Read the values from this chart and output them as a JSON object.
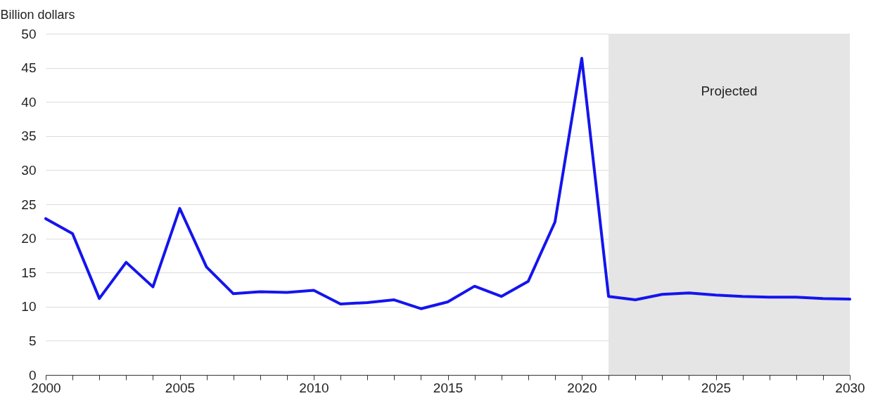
{
  "chart_data": {
    "type": "line",
    "ylabel": "Billion dollars",
    "x": [
      2000,
      2001,
      2002,
      2003,
      2004,
      2005,
      2006,
      2007,
      2008,
      2009,
      2010,
      2011,
      2012,
      2013,
      2014,
      2015,
      2016,
      2017,
      2018,
      2019,
      2020,
      2021,
      2022,
      2023,
      2024,
      2025,
      2026,
      2027,
      2028,
      2029,
      2030
    ],
    "series": [
      {
        "color": "#1414ee",
        "values": [
          22.9,
          20.7,
          11.2,
          16.5,
          12.9,
          24.4,
          15.8,
          11.9,
          12.2,
          12.1,
          12.4,
          10.4,
          10.6,
          11.0,
          9.7,
          10.7,
          13.0,
          11.5,
          13.7,
          22.4,
          46.4,
          11.5,
          11.0,
          11.8,
          12.0,
          11.7,
          11.5,
          11.4,
          11.4,
          11.2,
          11.1
        ]
      }
    ],
    "xlim": [
      2000,
      2030
    ],
    "xticks": [
      2000,
      {
        "value": 2001,
        "label": null
      },
      {
        "value": 2002,
        "label": null
      },
      {
        "value": 2003,
        "label": null
      },
      {
        "value": 2004,
        "label": null
      },
      2005,
      {
        "value": 2006,
        "label": null
      },
      {
        "value": 2007,
        "label": null
      },
      {
        "value": 2008,
        "label": null
      },
      {
        "value": 2009,
        "label": null
      },
      2010,
      {
        "value": 2011,
        "label": null
      },
      {
        "value": 2012,
        "label": null
      },
      {
        "value": 2013,
        "label": null
      },
      {
        "value": 2014,
        "label": null
      },
      2015,
      {
        "value": 2016,
        "label": null
      },
      {
        "value": 2017,
        "label": null
      },
      {
        "value": 2018,
        "label": null
      },
      {
        "value": 2019,
        "label": null
      },
      2020,
      {
        "value": 2021,
        "label": null
      },
      {
        "value": 2022,
        "label": null
      },
      {
        "value": 2023,
        "label": null
      },
      {
        "value": 2024,
        "label": null
      },
      2025,
      {
        "value": 2026,
        "label": null
      },
      {
        "value": 2027,
        "label": null
      },
      {
        "value": 2028,
        "label": null
      },
      {
        "value": 2029,
        "label": null
      },
      2030
    ],
    "ylim": [
      0,
      50
    ],
    "yticks": [
      0,
      5,
      10,
      15,
      20,
      25,
      30,
      35,
      40,
      45,
      50
    ],
    "grid": "y",
    "line_style": "solid",
    "bands": [
      {
        "axis": "x",
        "from": 2021,
        "to": 2030,
        "label": "Projected",
        "color": "#e5e5e5"
      }
    ]
  }
}
